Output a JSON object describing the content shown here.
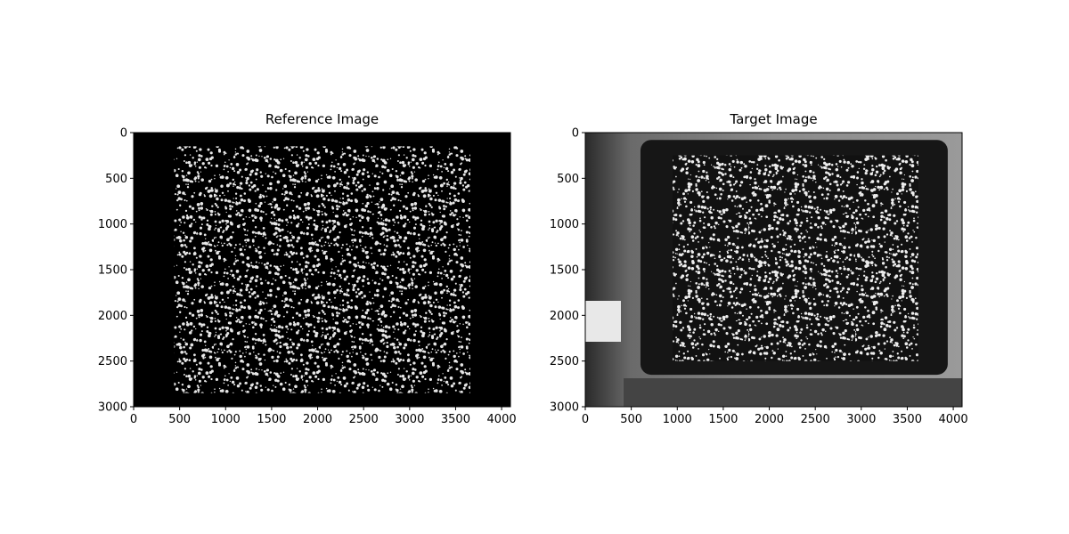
{
  "chart_data": [
    {
      "type": "image",
      "title": "Reference Image",
      "xlabel": "",
      "ylabel": "",
      "xlim": [
        0,
        4096
      ],
      "ylim": [
        3000,
        0
      ],
      "xticks": [
        0,
        500,
        1000,
        1500,
        2000,
        2500,
        3000,
        3500,
        4000
      ],
      "yticks": [
        0,
        500,
        1000,
        1500,
        2000,
        2500,
        3000
      ],
      "grid": false,
      "background": "#000000",
      "speckle_region": {
        "x": [
          440,
          3660
        ],
        "y": [
          150,
          2850
        ]
      }
    },
    {
      "type": "image",
      "title": "Target Image",
      "xlabel": "",
      "ylabel": "",
      "xlim": [
        0,
        4096
      ],
      "ylim": [
        3000,
        0
      ],
      "xticks": [
        0,
        500,
        1000,
        1500,
        2000,
        2500,
        3000,
        3500,
        4000
      ],
      "yticks": [
        0,
        500,
        1000,
        1500,
        2000,
        2500,
        3000
      ],
      "grid": false,
      "background": "#5a5a5a",
      "device_frame": {
        "x": [
          600,
          3940
        ],
        "y": [
          80,
          2650
        ]
      },
      "speckle_region": {
        "x": [
          950,
          3620
        ],
        "y": [
          250,
          2500
        ]
      }
    }
  ]
}
